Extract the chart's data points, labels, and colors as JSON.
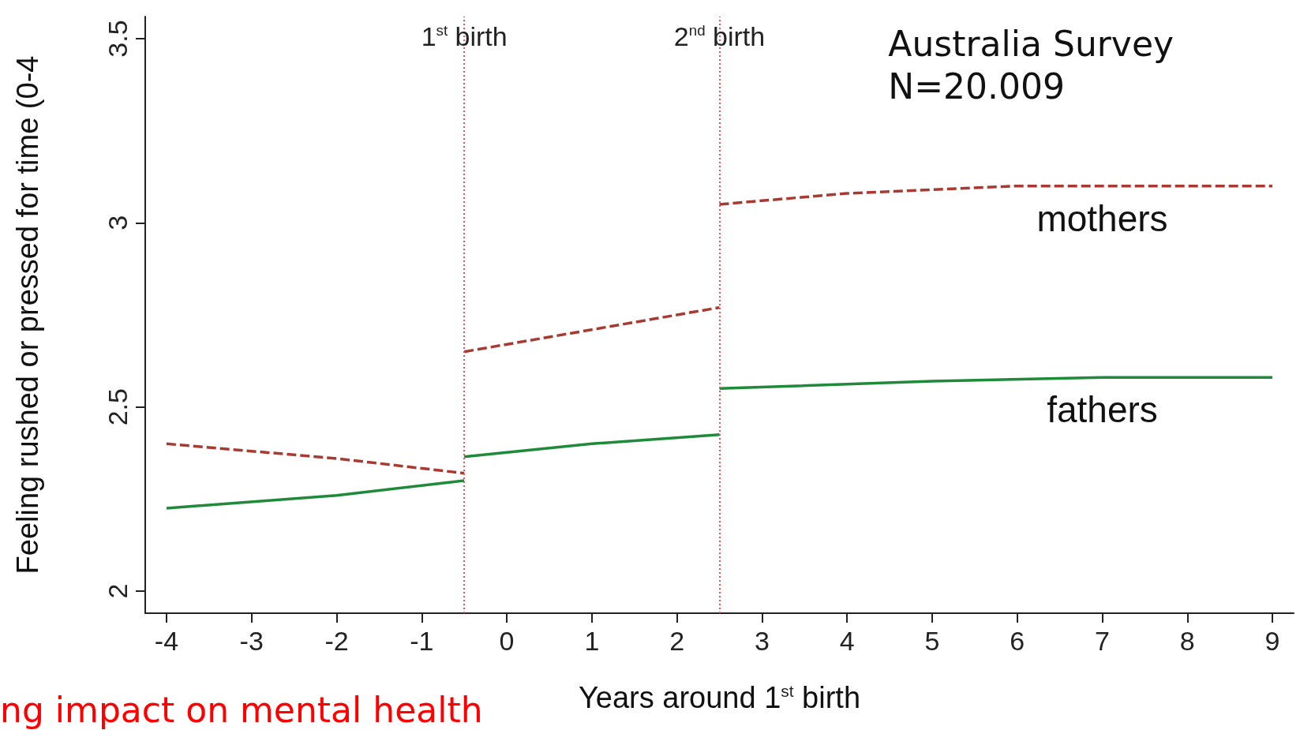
{
  "chart_data": {
    "type": "line",
    "xlabel": "Years around 1$^{st}$ birth",
    "ylabel": "Feeling rushed or pressed for time (0-4",
    "xlim": [
      -4.25,
      9.25
    ],
    "xticks": [
      -4,
      -3,
      -2,
      -1,
      0,
      1,
      2,
      3,
      4,
      5,
      6,
      7,
      8,
      9
    ],
    "ylim": [
      1.94,
      3.56
    ],
    "yticks": [
      2,
      2.5,
      3,
      3.5
    ],
    "grid": false,
    "legend": false,
    "marker": "none",
    "series": [
      {
        "name": "mothers",
        "color": "#a83a32",
        "line_style": "dashed",
        "x": [
          -4,
          -2,
          -0.5,
          null,
          -0.5,
          1,
          2,
          2.5,
          null,
          2.5,
          4,
          5,
          6,
          7,
          9
        ],
        "values": [
          2.4,
          2.36,
          2.32,
          null,
          2.65,
          2.71,
          2.75,
          2.77,
          null,
          3.05,
          3.08,
          3.09,
          3.1,
          3.1,
          3.1
        ]
      },
      {
        "name": "fathers",
        "color": "#1e8a3a",
        "line_style": "solid",
        "x": [
          -4,
          -2,
          -0.5,
          null,
          -0.5,
          1,
          2.5,
          null,
          2.5,
          5,
          7,
          9
        ],
        "values": [
          2.225,
          2.26,
          2.3,
          null,
          2.365,
          2.4,
          2.425,
          null,
          2.55,
          2.57,
          2.58,
          2.58
        ]
      }
    ],
    "ref_lines": [
      {
        "axis": "x",
        "value": -0.5,
        "label": "1$^{st}$ birth",
        "color": "#e8505a",
        "line_style": "dotted"
      },
      {
        "axis": "x",
        "value": 2.5,
        "label": "2$^{nd}$ birth",
        "color": "#e8505a",
        "line_style": "dotted"
      }
    ],
    "annotations": [
      "Australia Survey\nN=20.009",
      "ng impact on mental health"
    ]
  }
}
